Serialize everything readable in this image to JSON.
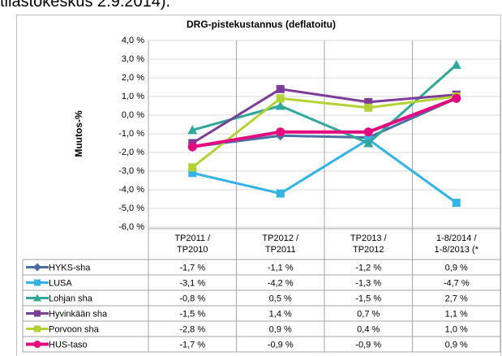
{
  "context_text": "tilastokeskus 2.9.2014).",
  "chart_data": {
    "type": "line",
    "title": "DRG-pistekustannus (deflatoitu)",
    "y_label": "Muutos-%",
    "categories": [
      "TP2011 /\nTP2010",
      "TP2012 /\nTP2011",
      "TP2013 /\nTP2012",
      "1-8/2014 /\n1-8/2013 (*"
    ],
    "ylim": [
      -6,
      4
    ],
    "yticks": [
      {
        "value": 4,
        "label": "4,0 %"
      },
      {
        "value": 3,
        "label": "3,0 %"
      },
      {
        "value": 2,
        "label": "2,0 %"
      },
      {
        "value": 1,
        "label": "1,0 %"
      },
      {
        "value": 0,
        "label": "0,0 %"
      },
      {
        "value": -1,
        "label": "-1,0 %"
      },
      {
        "value": -2,
        "label": "-2,0 %"
      },
      {
        "value": -3,
        "label": "-3,0 %"
      },
      {
        "value": -4,
        "label": "-4,0 %"
      },
      {
        "value": -5,
        "label": "-5,0 %"
      },
      {
        "value": -6,
        "label": "-6,0 %"
      }
    ],
    "grid": true,
    "series": [
      {
        "name": "HYKS-sha",
        "color": "#4a6fa5",
        "marker": "diamond",
        "values": [
          -1.7,
          -1.1,
          -1.2,
          0.9
        ],
        "value_labels": [
          "-1,7 %",
          "-1,1 %",
          "-1,2 %",
          "0,9 %"
        ]
      },
      {
        "name": "LUSA",
        "color": "#33b3e6",
        "marker": "square",
        "values": [
          -3.1,
          -4.2,
          -1.3,
          -4.7
        ],
        "value_labels": [
          "-3,1 %",
          "-4,2 %",
          "-1,3 %",
          "-4,7 %"
        ]
      },
      {
        "name": "Lohjan sha",
        "color": "#2fa79b",
        "marker": "triangle",
        "values": [
          -0.8,
          0.5,
          -1.5,
          2.7
        ],
        "value_labels": [
          "-0,8 %",
          "0,5 %",
          "-1,5 %",
          "2,7 %"
        ]
      },
      {
        "name": "Hyvinkään sha",
        "color": "#7d3c98",
        "marker": "square",
        "values": [
          -1.5,
          1.4,
          0.7,
          1.1
        ],
        "value_labels": [
          "-1,5 %",
          "1,4 %",
          "0,7 %",
          "1,1 %"
        ]
      },
      {
        "name": "Porvoon sha",
        "color": "#b3d234",
        "marker": "square",
        "values": [
          -2.8,
          0.9,
          0.4,
          1.0
        ],
        "value_labels": [
          "-2,8 %",
          "0,9 %",
          "0,4 %",
          "1,0 %"
        ]
      },
      {
        "name": "HUS-taso",
        "color": "#e5097f",
        "marker": "circle",
        "values": [
          -1.7,
          -0.9,
          -0.9,
          0.9
        ],
        "value_labels": [
          "-1,7 %",
          "-0,9 %",
          "-0,9 %",
          "0,9 %"
        ]
      }
    ]
  }
}
